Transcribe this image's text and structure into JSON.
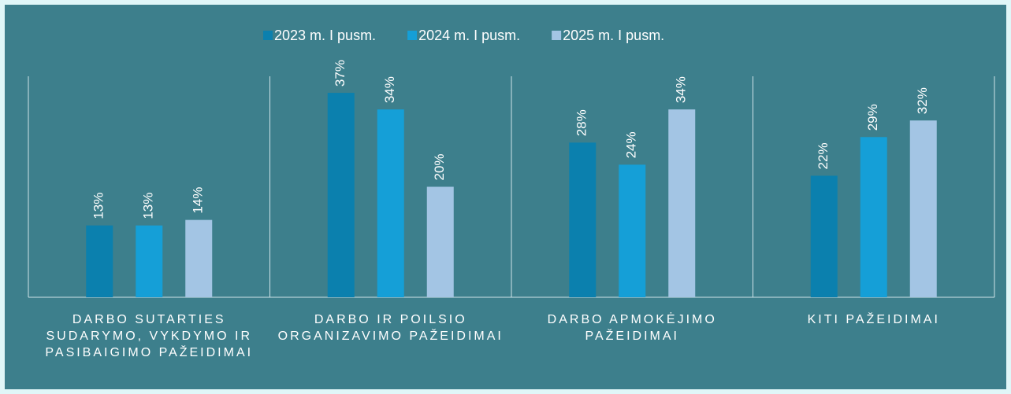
{
  "chart_data": {
    "type": "bar",
    "categories": [
      "DARBO SUTARTIES SUDARYMO, VYKDYMO IR PASIBAIGIMO PAŽEIDIMAI",
      "DARBO IR POILSIO ORGANIZAVIMO PAŽEIDIMAI",
      "DARBO APMOKĖJIMO PAŽEIDIMAI",
      "KITI PAŽEIDIMAI"
    ],
    "series": [
      {
        "name": "2023 m. I pusm.",
        "color": "#0b80ae",
        "values": [
          13,
          37,
          28,
          22
        ],
        "value_labels": [
          "13%",
          "37%",
          "28%",
          "22%"
        ]
      },
      {
        "name": "2024 m. I pusm.",
        "color": "#159fd7",
        "values": [
          13,
          34,
          24,
          29
        ],
        "value_labels": [
          "13%",
          "34%",
          "24%",
          "29%"
        ]
      },
      {
        "name": "2025 m. I pusm.",
        "color": "#a3c5e4",
        "values": [
          14,
          20,
          34,
          32
        ],
        "value_labels": [
          "14%",
          "20%",
          "34%",
          "32%"
        ]
      }
    ],
    "ylim": [
      0,
      40
    ],
    "legend": "top"
  }
}
